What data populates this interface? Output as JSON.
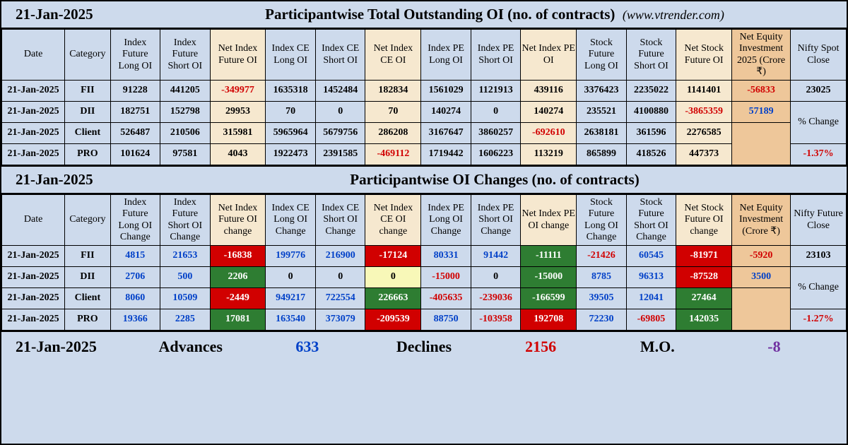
{
  "colors": {
    "page_bg": "#cddaec",
    "cream": "#f6e8cf",
    "tan": "#eec79a",
    "red_bg": "#d10000",
    "green_bg": "#2e7d32",
    "yellow_bg": "#f8f8b8",
    "neg_text": "#d10000",
    "pos_text": "#0040c8",
    "purple": "#7030a0"
  },
  "header1": {
    "date": "21-Jan-2025",
    "title": "Participantwise Total Outstanding OI (no. of contracts)",
    "site": "(www.vtrender.com)"
  },
  "header2": {
    "date": "21-Jan-2025",
    "title": "Participantwise OI Changes (no. of contracts)"
  },
  "table1": {
    "columns": [
      "Date",
      "Category",
      "Index Future Long OI",
      "Index Future Short OI",
      "Net Index Future OI",
      "Index CE Long OI",
      "Index CE Short OI",
      "Net Index CE OI",
      "Index PE Long OI",
      "Index PE Short OI",
      "Net Index PE OI",
      "Stock Future Long OI",
      "Stock Future Short OI",
      "Net Stock Future OI",
      "Net Equity Investment 2025 (Crore ₹)",
      "Nifty Spot Close"
    ],
    "highlight_cols": [
      4,
      7,
      10,
      13
    ],
    "tan_col": 14,
    "rows": [
      {
        "date": "21-Jan-2025",
        "cat": "FII",
        "v": [
          "91228",
          "441205",
          "-349977",
          "1635318",
          "1452484",
          "182834",
          "1561029",
          "1121913",
          "439116",
          "3376423",
          "2235022",
          "1141401",
          "-56833",
          "23025"
        ],
        "neg": [
          2,
          12
        ]
      },
      {
        "date": "21-Jan-2025",
        "cat": "DII",
        "v": [
          "182751",
          "152798",
          "29953",
          "70",
          "0",
          "70",
          "140274",
          "0",
          "140274",
          "235521",
          "4100880",
          "-3865359",
          "57189",
          ""
        ],
        "neg": [
          11
        ],
        "pos": [
          12
        ],
        "last": "% Change"
      },
      {
        "date": "21-Jan-2025",
        "cat": "Client",
        "v": [
          "526487",
          "210506",
          "315981",
          "5965964",
          "5679756",
          "286208",
          "3167647",
          "3860257",
          "-692610",
          "2638181",
          "361596",
          "2276585",
          "",
          ""
        ],
        "neg": [
          8
        ]
      },
      {
        "date": "21-Jan-2025",
        "cat": "PRO",
        "v": [
          "101624",
          "97581",
          "4043",
          "1922473",
          "2391585",
          "-469112",
          "1719442",
          "1606223",
          "113219",
          "865899",
          "418526",
          "447373",
          "",
          "-1.37%"
        ],
        "neg": [
          5,
          13
        ]
      }
    ],
    "rowspan_last": [
      [
        0,
        "23025"
      ],
      [
        1,
        "% Change"
      ],
      [
        3,
        "-1.37%"
      ]
    ]
  },
  "table2": {
    "columns": [
      "Date",
      "Category",
      "Index Future Long OI Change",
      "Index Future Short OI Change",
      "Net Index Future OI change",
      "Index CE Long OI Change",
      "Index CE Short OI Change",
      "Net Index CE OI change",
      "Index PE Long OI Change",
      "Index PE Short OI Change",
      "Net Index PE OI change",
      "Stock Future Long OI Change",
      "Stock Future Short OI Change",
      "Net Stock Future OI change",
      "Net Equity Investment (Crore ₹)",
      "Nifty Future Close"
    ],
    "highlight_cols": [
      4,
      7,
      10,
      13
    ],
    "tan_col": 14,
    "rows": [
      {
        "date": "21-Jan-2025",
        "cat": "FII",
        "cells": [
          {
            "v": "4815",
            "c": "pos"
          },
          {
            "v": "21653",
            "c": "pos"
          },
          {
            "v": "-16838",
            "bg": "red"
          },
          {
            "v": "199776",
            "c": "pos"
          },
          {
            "v": "216900",
            "c": "pos"
          },
          {
            "v": "-17124",
            "bg": "red"
          },
          {
            "v": "80331",
            "c": "pos"
          },
          {
            "v": "91442",
            "c": "pos"
          },
          {
            "v": "-11111",
            "bg": "green"
          },
          {
            "v": "-21426",
            "c": "neg"
          },
          {
            "v": "60545",
            "c": "pos"
          },
          {
            "v": "-81971",
            "bg": "red"
          },
          {
            "v": "-5920",
            "c": "neg"
          },
          {
            "v": "23103"
          }
        ]
      },
      {
        "date": "21-Jan-2025",
        "cat": "DII",
        "cells": [
          {
            "v": "2706",
            "c": "pos"
          },
          {
            "v": "500",
            "c": "pos"
          },
          {
            "v": "2206",
            "bg": "green"
          },
          {
            "v": "0"
          },
          {
            "v": "0"
          },
          {
            "v": "0",
            "bg": "yellow"
          },
          {
            "v": "-15000",
            "c": "neg"
          },
          {
            "v": "0"
          },
          {
            "v": "-15000",
            "bg": "green"
          },
          {
            "v": "8785",
            "c": "pos"
          },
          {
            "v": "96313",
            "c": "pos"
          },
          {
            "v": "-87528",
            "bg": "red"
          },
          {
            "v": "3500",
            "c": "pos"
          },
          {
            "v": "% Change",
            "plain": true
          }
        ]
      },
      {
        "date": "21-Jan-2025",
        "cat": "Client",
        "cells": [
          {
            "v": "8060",
            "c": "pos"
          },
          {
            "v": "10509",
            "c": "pos"
          },
          {
            "v": "-2449",
            "bg": "red"
          },
          {
            "v": "949217",
            "c": "pos"
          },
          {
            "v": "722554",
            "c": "pos"
          },
          {
            "v": "226663",
            "bg": "green"
          },
          {
            "v": "-405635",
            "c": "neg"
          },
          {
            "v": "-239036",
            "c": "neg"
          },
          {
            "v": "-166599",
            "bg": "green"
          },
          {
            "v": "39505",
            "c": "pos"
          },
          {
            "v": "12041",
            "c": "pos"
          },
          {
            "v": "27464",
            "bg": "green"
          },
          {
            "v": ""
          },
          {
            "v": ""
          }
        ]
      },
      {
        "date": "21-Jan-2025",
        "cat": "PRO",
        "cells": [
          {
            "v": "19366",
            "c": "pos"
          },
          {
            "v": "2285",
            "c": "pos"
          },
          {
            "v": "17081",
            "bg": "green"
          },
          {
            "v": "163540",
            "c": "pos"
          },
          {
            "v": "373079",
            "c": "pos"
          },
          {
            "v": "-209539",
            "bg": "red"
          },
          {
            "v": "88750",
            "c": "pos"
          },
          {
            "v": "-103958",
            "c": "neg"
          },
          {
            "v": "192708",
            "bg": "red"
          },
          {
            "v": "72230",
            "c": "pos"
          },
          {
            "v": "-69805",
            "c": "neg"
          },
          {
            "v": "142035",
            "bg": "green"
          },
          {
            "v": ""
          },
          {
            "v": "-1.27%",
            "c": "neg"
          }
        ]
      }
    ]
  },
  "footer": {
    "date": "21-Jan-2025",
    "advances_label": "Advances",
    "advances": "633",
    "declines_label": "Declines",
    "declines": "2156",
    "mo_label": "M.O.",
    "mo": "-8"
  }
}
